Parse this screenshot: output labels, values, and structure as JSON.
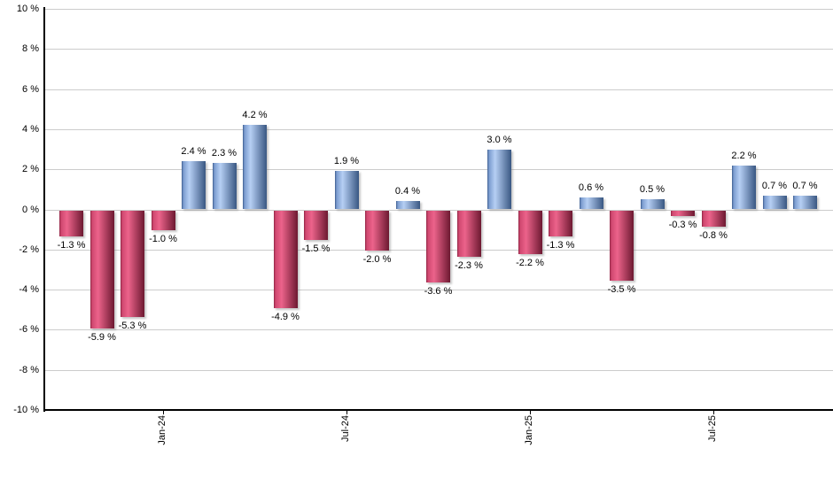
{
  "chart_data": {
    "type": "bar",
    "title": "",
    "xlabel": "",
    "ylabel": "",
    "ylim": [
      -10,
      10
    ],
    "ytick_step": 2,
    "grid": true,
    "legend": "none",
    "y_tick_labels": [
      "10 %",
      "8 %",
      "6 %",
      "4 %",
      "2 %",
      "0 %",
      "-2 %",
      "-4 %",
      "-6 %",
      "-8 %",
      "-10 %"
    ],
    "values": [
      -1.3,
      -5.9,
      -5.3,
      -1.0,
      2.4,
      2.3,
      4.2,
      -4.9,
      -1.5,
      1.9,
      -2.0,
      0.4,
      -3.6,
      -2.3,
      3.0,
      -2.2,
      -1.3,
      0.6,
      -3.5,
      0.5,
      -0.3,
      -0.8,
      2.2,
      0.7,
      0.7
    ],
    "value_labels": [
      "-1.3 %",
      "-5.9 %",
      "-5.3 %",
      "-1.0 %",
      "2.4 %",
      "2.3 %",
      "4.2 %",
      "-4.9 %",
      "-1.5 %",
      "1.9 %",
      "-2.0 %",
      "0.4 %",
      "-3.6 %",
      "-2.3 %",
      "3.0 %",
      "-2.2 %",
      "-1.3 %",
      "0.6 %",
      "-3.5 %",
      "0.5 %",
      "-0.3 %",
      "-0.8 %",
      "2.2 %",
      "0.7 %",
      "0.7 %"
    ],
    "x_tick_labels": [
      {
        "bar_index": 3,
        "label": "Jan-24"
      },
      {
        "bar_index": 9,
        "label": "Jul-24"
      },
      {
        "bar_index": 15,
        "label": "Jan-25"
      },
      {
        "bar_index": 21,
        "label": "Jul-25"
      }
    ],
    "colors": {
      "positive_bar_gradient": [
        "#3d5c8e",
        "#7b9ccf",
        "#b6cff4",
        "#395782"
      ],
      "negative_bar_gradient": [
        "#8e2444",
        "#cf486f",
        "#ec638b",
        "#6d1931"
      ],
      "gridline": "#cccccc",
      "axis": "#000000",
      "label_text": "#000000",
      "background": "#ffffff"
    }
  }
}
